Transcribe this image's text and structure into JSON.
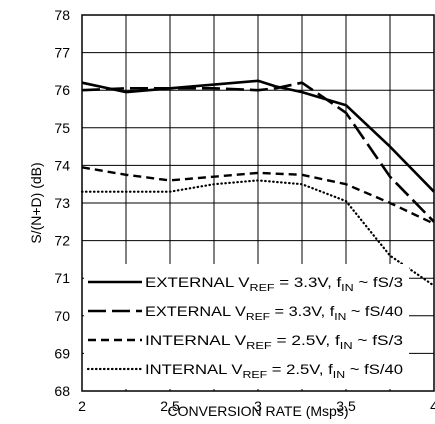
{
  "chart_data": {
    "type": "line",
    "title": "",
    "xlabel": "CONVERSION RATE (Msps)",
    "ylabel": "S/(N+D) (dB)",
    "xlim": [
      2,
      4
    ],
    "ylim": [
      68,
      78
    ],
    "x_ticks": [
      "2",
      "2.5",
      "3",
      "3.5",
      "4"
    ],
    "y_ticks": [
      "68",
      "69",
      "70",
      "71",
      "72",
      "73",
      "74",
      "75",
      "76",
      "77",
      "78"
    ],
    "grid": true,
    "legend_position": "bottom-left",
    "series": [
      {
        "name": "EXTERNAL VREF = 3.3V, fIN ~ fS/3",
        "legend": {
          "pre": "EXTERNAL V",
          "sub1": "REF",
          "mid": " = 3.3V, f",
          "sub2": "IN",
          "post": " ~ fS/3"
        },
        "style": "solid",
        "x": [
          2.0,
          2.25,
          2.5,
          2.75,
          3.0,
          3.1,
          3.25,
          3.5,
          3.75,
          4.0
        ],
        "y": [
          76.2,
          75.95,
          76.05,
          76.15,
          76.25,
          76.1,
          75.95,
          75.6,
          74.5,
          73.3
        ]
      },
      {
        "name": "EXTERNAL VREF = 3.3V, fIN ~ fS/40",
        "legend": {
          "pre": "EXTERNAL V",
          "sub1": "REF",
          "mid": " = 3.3V, f",
          "sub2": "IN",
          "post": " ~ fS/40"
        },
        "style": "long-dash",
        "x": [
          2.0,
          2.25,
          2.5,
          2.75,
          3.0,
          3.1,
          3.25,
          3.5,
          3.75,
          4.0
        ],
        "y": [
          76.0,
          76.05,
          76.05,
          76.05,
          76.0,
          76.05,
          76.2,
          75.4,
          73.7,
          72.5
        ]
      },
      {
        "name": "INTERNAL VREF = 2.5V, fIN ~ fS/3",
        "legend": {
          "pre": "INTERNAL V",
          "sub1": "REF",
          "mid": " = 2.5V, f",
          "sub2": "IN",
          "post": " ~ fS/3"
        },
        "style": "dash",
        "x": [
          2.0,
          2.25,
          2.5,
          2.75,
          3.0,
          3.25,
          3.5,
          3.75,
          4.0
        ],
        "y": [
          73.95,
          73.75,
          73.6,
          73.7,
          73.8,
          73.75,
          73.5,
          73.0,
          72.45
        ]
      },
      {
        "name": "INTERNAL VREF = 2.5V, fIN ~ fS/40",
        "legend": {
          "pre": "INTERNAL V",
          "sub1": "REF",
          "mid": " = 2.5V, f",
          "sub2": "IN",
          "post": " ~ fS/40"
        },
        "style": "dotted",
        "x": [
          2.0,
          2.25,
          2.5,
          2.75,
          3.0,
          3.25,
          3.5,
          3.75,
          4.0
        ],
        "y": [
          73.3,
          73.3,
          73.3,
          73.5,
          73.6,
          73.5,
          73.05,
          71.6,
          70.8
        ]
      }
    ]
  }
}
